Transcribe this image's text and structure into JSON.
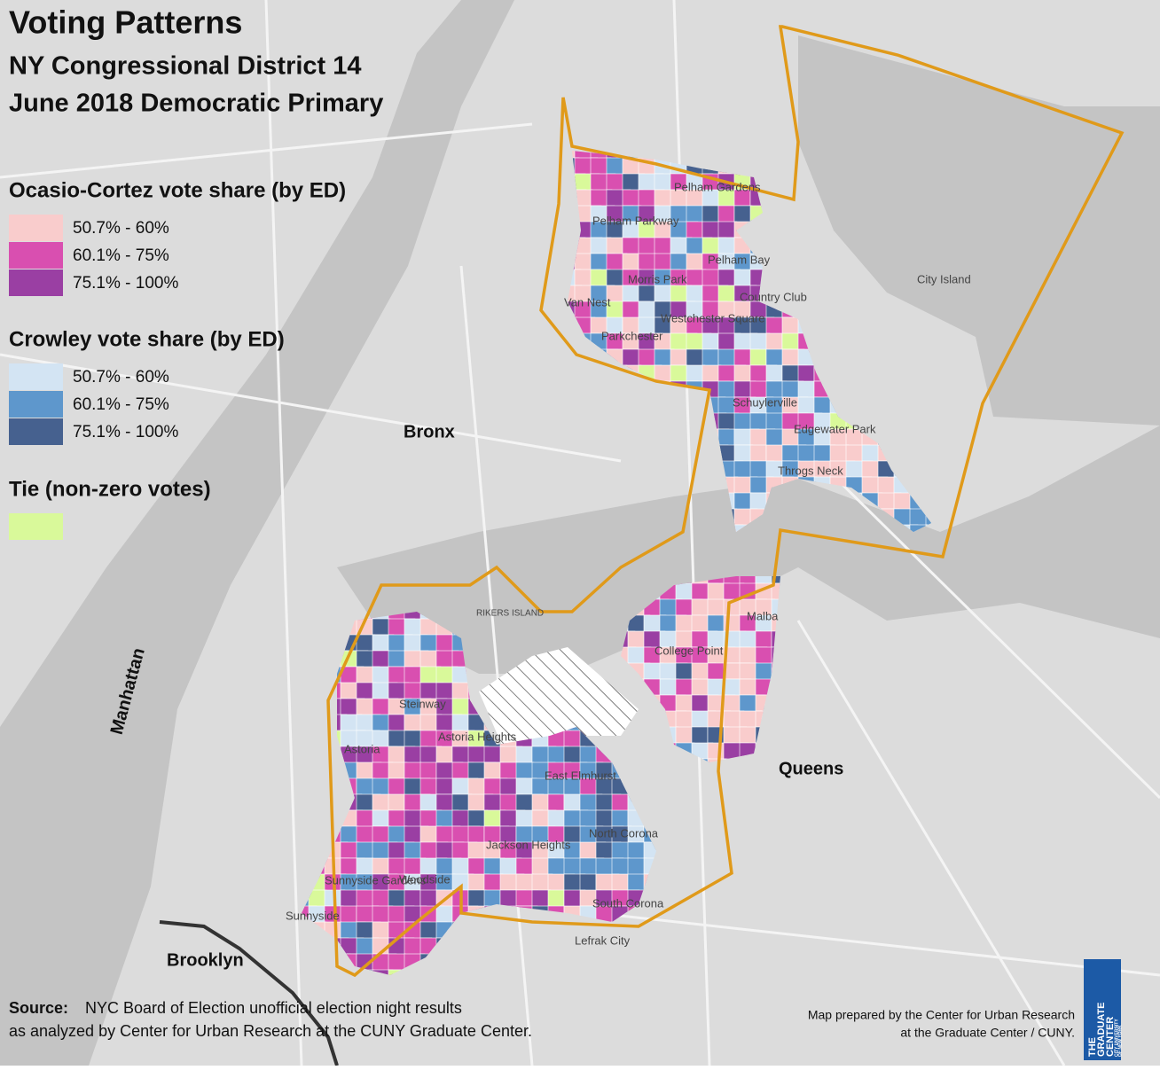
{
  "title": {
    "lines": [
      "Voting Patterns",
      "NY Congressional District 14",
      "June 2018 Democratic Primary"
    ]
  },
  "legend": {
    "groups": [
      {
        "title": "Ocasio-Cortez vote share (by ED)",
        "items": [
          {
            "label": "50.7% - 60%",
            "color": "#f9cccc"
          },
          {
            "label": "60.1% - 75%",
            "color": "#d94fb0"
          },
          {
            "label": "75.1% - 100%",
            "color": "#9a3fa3"
          }
        ]
      },
      {
        "title": "Crowley vote share (by ED)",
        "items": [
          {
            "label": "50.7% - 60%",
            "color": "#d3e4f3"
          },
          {
            "label": "60.1% - 75%",
            "color": "#5e97cc"
          },
          {
            "label": "75.1% - 100%",
            "color": "#46618f"
          }
        ]
      },
      {
        "title": "Tie (non-zero votes)",
        "items": [
          {
            "color": "#d9f99a"
          }
        ]
      }
    ]
  },
  "places": [
    {
      "label": "Bronx"
    },
    {
      "label": "Queens"
    },
    {
      "label": "Manhattan"
    },
    {
      "label": "Brooklyn"
    },
    {
      "label": "RIKERS ISLAND"
    },
    {
      "label": "Pelham Gardens"
    },
    {
      "label": "Pelham Parkway"
    },
    {
      "label": "Pelham Bay"
    },
    {
      "label": "Morris Park"
    },
    {
      "label": "Van Nest"
    },
    {
      "label": "Country Club"
    },
    {
      "label": "Westchester Square"
    },
    {
      "label": "Parkchester"
    },
    {
      "label": "City Island"
    },
    {
      "label": "Schuylerville"
    },
    {
      "label": "Edgewater Park"
    },
    {
      "label": "Throgs Neck"
    },
    {
      "label": "Malba"
    },
    {
      "label": "College Point"
    },
    {
      "label": "Steinway"
    },
    {
      "label": "Astoria Heights"
    },
    {
      "label": "Astoria"
    },
    {
      "label": "East Elmhurst"
    },
    {
      "label": "North Corona"
    },
    {
      "label": "Jackson Heights"
    },
    {
      "label": "Woodside"
    },
    {
      "label": "Sunnyside Gardens"
    },
    {
      "label": "Sunnyside"
    },
    {
      "label": "South Corona"
    },
    {
      "label": "Lefrak City"
    }
  ],
  "source": {
    "label": "Source:",
    "line1": "NYC Board of Election unofficial election night results",
    "line2": "as analyzed by Center for Urban Research at the CUNY Graduate Center."
  },
  "credit": {
    "line1": "Map prepared by the Center for Urban Research",
    "line2": "at the Graduate Center / CUNY."
  },
  "logo": {
    "line1": "THE",
    "line2": "GRADUATE",
    "line3": "CENTER",
    "line4": "CITY UNIVERSITY",
    "line5": "OF NEW YORK"
  }
}
